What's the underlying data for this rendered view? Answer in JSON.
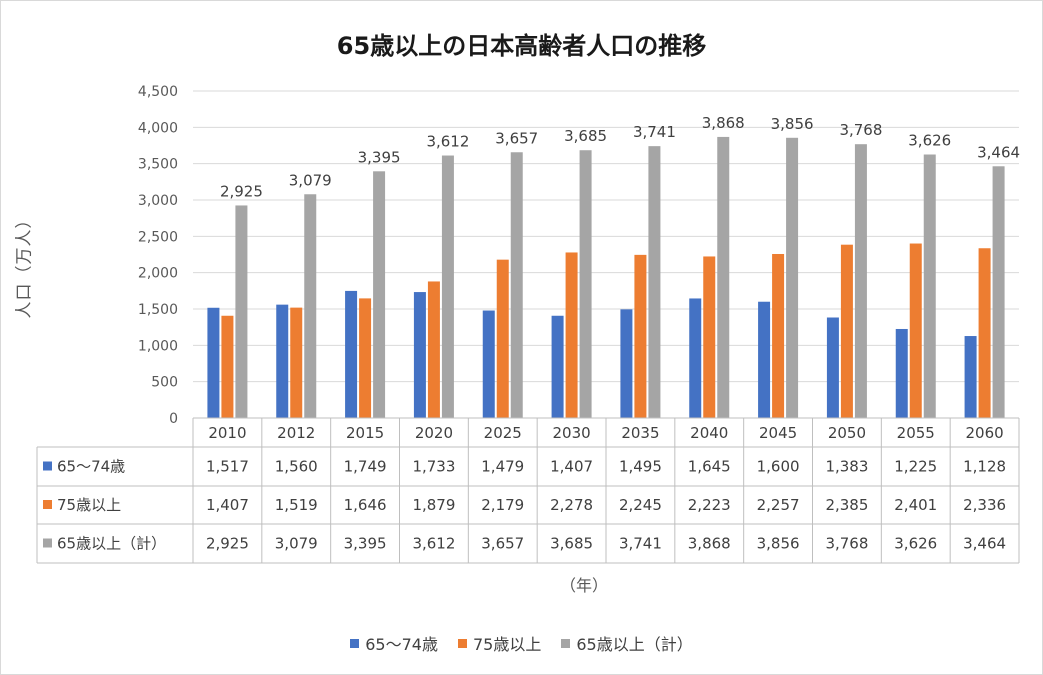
{
  "chart_data": {
    "type": "bar",
    "title": "65歳以上の日本高齢者人口の推移",
    "xlabel": "（年）",
    "ylabel": "人口（万人）",
    "categories": [
      "2010",
      "2012",
      "2015",
      "2020",
      "2025",
      "2030",
      "2035",
      "2040",
      "2045",
      "2050",
      "2055",
      "2060"
    ],
    "ylim": [
      0,
      4500
    ],
    "yticks": [
      0,
      500,
      1000,
      1500,
      2000,
      2500,
      3000,
      3500,
      4000,
      4500
    ],
    "ytick_labels": [
      "0",
      "500",
      "1,000",
      "1,500",
      "2,000",
      "2,500",
      "3,000",
      "3,500",
      "4,000",
      "4,500"
    ],
    "grid": true,
    "legend_position": "bottom",
    "series": [
      {
        "name": "65～74歳",
        "color": "#4472c4",
        "values": [
          1517,
          1560,
          1749,
          1733,
          1479,
          1407,
          1495,
          1645,
          1600,
          1383,
          1225,
          1128
        ],
        "labels": [
          "1,517",
          "1,560",
          "1,749",
          "1,733",
          "1,479",
          "1,407",
          "1,495",
          "1,645",
          "1,600",
          "1,383",
          "1,225",
          "1,128"
        ]
      },
      {
        "name": "75歳以上",
        "color": "#ed7d31",
        "values": [
          1407,
          1519,
          1646,
          1879,
          2179,
          2278,
          2245,
          2223,
          2257,
          2385,
          2401,
          2336
        ],
        "labels": [
          "1,407",
          "1,519",
          "1,646",
          "1,879",
          "2,179",
          "2,278",
          "2,245",
          "2,223",
          "2,257",
          "2,385",
          "2,401",
          "2,336"
        ]
      },
      {
        "name": "65歳以上（計）",
        "color": "#a5a5a5",
        "values": [
          2925,
          3079,
          3395,
          3612,
          3657,
          3685,
          3741,
          3868,
          3856,
          3768,
          3626,
          3464
        ],
        "labels": [
          "2,925",
          "3,079",
          "3,395",
          "3,612",
          "3,657",
          "3,685",
          "3,741",
          "3,868",
          "3,856",
          "3,768",
          "3,626",
          "3,464"
        ],
        "data_labels_shown": true
      }
    ]
  }
}
